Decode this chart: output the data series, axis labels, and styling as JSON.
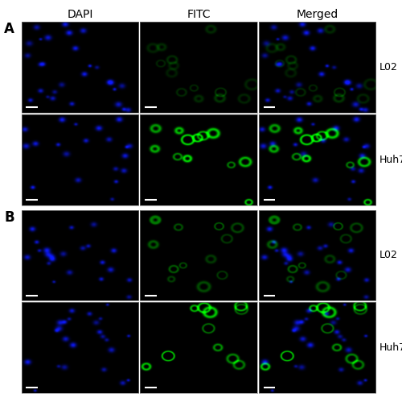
{
  "panel_A_label": "A",
  "panel_B_label": "B",
  "col_labels": [
    "DAPI",
    "FITC",
    "Merged"
  ],
  "row_labels_A": [
    "L02",
    "Huh7"
  ],
  "row_labels_B": [
    "L02",
    "Huh7"
  ],
  "background_color": "#000000",
  "figure_bg": "#ffffff",
  "col_label_fontsize": 10,
  "row_label_fontsize": 9,
  "panel_label_fontsize": 12,
  "seeds": {
    "A_L02_dapi": 101,
    "A_L02_fitc": 102,
    "A_Huh7_dapi": 201,
    "A_Huh7_fitc": 202,
    "B_L02_dapi": 301,
    "B_L02_fitc": 302,
    "B_Huh7_dapi": 401,
    "B_Huh7_fitc": 402
  }
}
